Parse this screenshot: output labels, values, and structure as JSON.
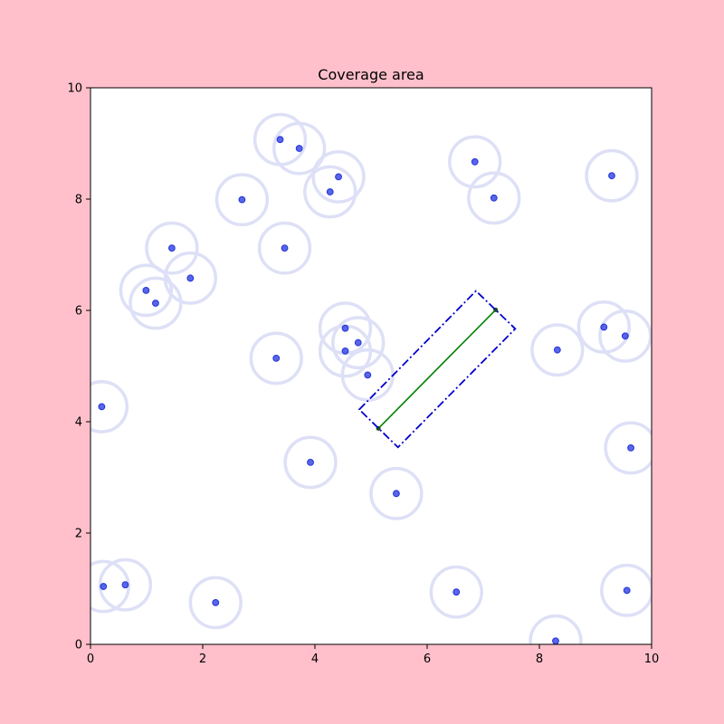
{
  "chart_data": {
    "type": "scatter",
    "title": "Coverage area",
    "xlabel": "",
    "ylabel": "",
    "xlim": [
      0,
      10
    ],
    "ylim": [
      0,
      10
    ],
    "xticks": [
      "0",
      "2",
      "4",
      "6",
      "8",
      "10"
    ],
    "yticks": [
      "0",
      "2",
      "4",
      "6",
      "8",
      "10"
    ],
    "grid": false,
    "coverage_radius": 0.45,
    "colors": {
      "background": "#ffc0cb",
      "plot_area": "#ffffff",
      "point": "#2233dd",
      "coverage_circle": "#dde0f6",
      "segment": "#008000",
      "rectangle": "#0000cc"
    },
    "points": [
      {
        "x": 3.38,
        "y": 9.07
      },
      {
        "x": 3.72,
        "y": 8.91
      },
      {
        "x": 4.42,
        "y": 8.4
      },
      {
        "x": 4.27,
        "y": 8.13
      },
      {
        "x": 2.7,
        "y": 7.99
      },
      {
        "x": 6.85,
        "y": 8.67
      },
      {
        "x": 7.19,
        "y": 8.02
      },
      {
        "x": 9.29,
        "y": 8.42
      },
      {
        "x": 1.45,
        "y": 7.12
      },
      {
        "x": 3.46,
        "y": 7.12
      },
      {
        "x": 1.78,
        "y": 6.58
      },
      {
        "x": 0.99,
        "y": 6.36
      },
      {
        "x": 1.16,
        "y": 6.13
      },
      {
        "x": 4.54,
        "y": 5.68
      },
      {
        "x": 4.77,
        "y": 5.42
      },
      {
        "x": 4.54,
        "y": 5.27
      },
      {
        "x": 3.31,
        "y": 5.14
      },
      {
        "x": 4.94,
        "y": 4.84
      },
      {
        "x": 8.32,
        "y": 5.29
      },
      {
        "x": 9.15,
        "y": 5.7
      },
      {
        "x": 9.53,
        "y": 5.54
      },
      {
        "x": 0.2,
        "y": 4.27
      },
      {
        "x": 9.63,
        "y": 3.53
      },
      {
        "x": 3.92,
        "y": 3.27
      },
      {
        "x": 5.45,
        "y": 2.71
      },
      {
        "x": 0.23,
        "y": 1.04
      },
      {
        "x": 0.62,
        "y": 1.07
      },
      {
        "x": 2.23,
        "y": 0.75
      },
      {
        "x": 6.52,
        "y": 0.94
      },
      {
        "x": 9.56,
        "y": 0.97
      },
      {
        "x": 8.29,
        "y": 0.06
      }
    ],
    "segment": {
      "x1": 5.13,
      "y1": 3.88,
      "x2": 7.22,
      "y2": 6.01
    },
    "rectangle": [
      {
        "x": 4.79,
        "y": 4.22
      },
      {
        "x": 6.87,
        "y": 6.35
      },
      {
        "x": 7.57,
        "y": 5.67
      },
      {
        "x": 5.48,
        "y": 3.54
      }
    ]
  }
}
